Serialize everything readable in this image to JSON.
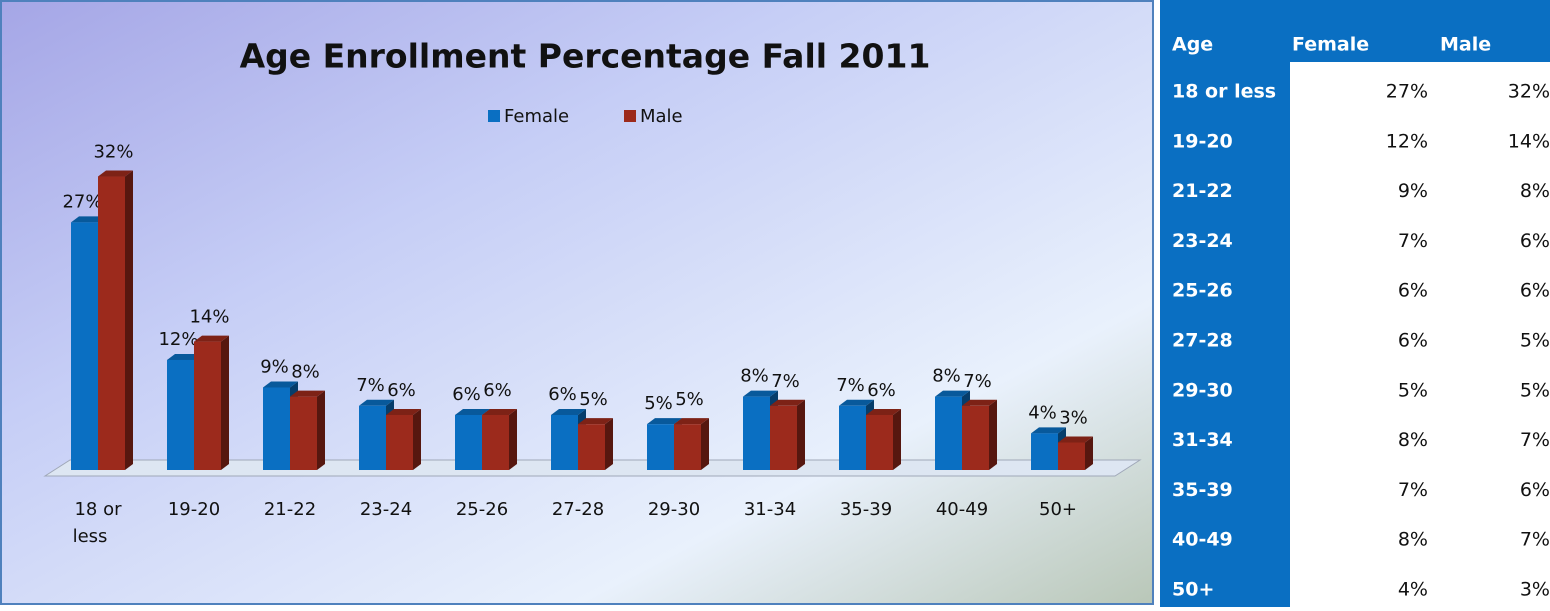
{
  "chart_data": {
    "type": "bar3d",
    "title": "Age Enrollment Percentage Fall 2011",
    "categories": [
      "18 or less",
      "19-20",
      "21-22",
      "23-24",
      "25-26",
      "27-28",
      "29-30",
      "31-34",
      "35-39",
      "40-49",
      "50+"
    ],
    "series": [
      {
        "name": "Female",
        "color": "#0a6fc2",
        "values": [
          27,
          12,
          9,
          7,
          6,
          6,
          5,
          8,
          7,
          8,
          4
        ],
        "value_labels": [
          "27%",
          "12%",
          "9%",
          "7%",
          "6%",
          "6%",
          "5%",
          "8%",
          "7%",
          "8%",
          "4%"
        ]
      },
      {
        "name": "Male",
        "color": "#9c2a1c",
        "values": [
          32,
          14,
          8,
          6,
          6,
          5,
          5,
          7,
          6,
          7,
          3
        ],
        "value_labels": [
          "32%",
          "14%",
          "8%",
          "6%",
          "6%",
          "5%",
          "5%",
          "7%",
          "6%",
          "7%",
          "3%"
        ]
      }
    ],
    "ylim": [
      0,
      35
    ],
    "legend": "top"
  },
  "table": {
    "header": [
      "Age",
      "Female",
      "Male"
    ],
    "rows": [
      [
        "18 or less",
        "27%",
        "32%"
      ],
      [
        "19-20",
        "12%",
        "14%"
      ],
      [
        "21-22",
        "9%",
        "8%"
      ],
      [
        "23-24",
        "7%",
        "6%"
      ],
      [
        "25-26",
        "6%",
        "6%"
      ],
      [
        "27-28",
        "6%",
        "5%"
      ],
      [
        "29-30",
        "5%",
        "5%"
      ],
      [
        "31-34",
        "8%",
        "7%"
      ],
      [
        "35-39",
        "7%",
        "6%"
      ],
      [
        "40-49",
        "8%",
        "7%"
      ],
      [
        "50+",
        "4%",
        "3%"
      ]
    ]
  }
}
